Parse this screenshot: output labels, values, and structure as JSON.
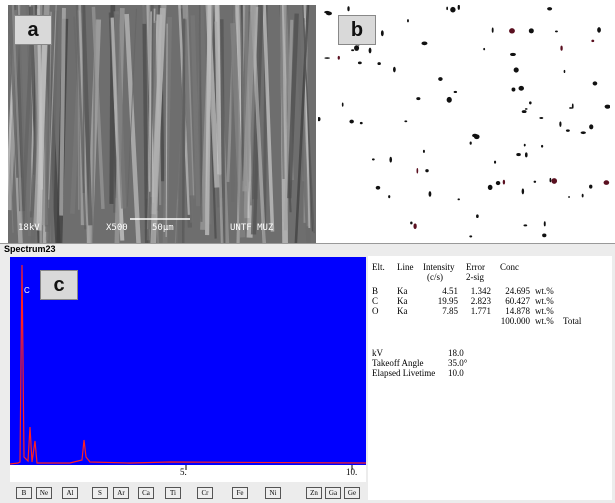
{
  "panels": {
    "a": {
      "label": "a",
      "info": {
        "voltage": "18kV",
        "magnification": "X500",
        "scale": "50µm",
        "lab": "UNTF MUZ"
      }
    },
    "b": {
      "label": "b"
    },
    "c": {
      "label": "c",
      "title": "Spectrum23",
      "peak_label": "C",
      "axis_labels": [
        "5.",
        "10."
      ],
      "elements": [
        "B",
        "Ne",
        "Al",
        "S",
        "Ar",
        "Ca",
        "Ti",
        "Cr",
        "Fe",
        "Ni",
        "Zn",
        "Ga",
        "Ge"
      ]
    }
  },
  "results": {
    "headers": [
      [
        "Elt."
      ],
      [
        "Line"
      ],
      [
        "Intensity",
        "(c/s)"
      ],
      [
        "Error",
        "2-sig"
      ],
      [
        "Conc"
      ]
    ],
    "rows": [
      [
        "B",
        "Ka",
        "4.51",
        "1.342",
        "24.695",
        "wt.%"
      ],
      [
        "C",
        "Ka",
        "19.95",
        "2.823",
        "60.427",
        "wt.%"
      ],
      [
        "O",
        "Ka",
        "7.85",
        "1.771",
        "14.878",
        "wt.%"
      ]
    ],
    "total": [
      "100.000",
      "wt.%",
      "Total"
    ],
    "settings": [
      [
        "kV",
        "18.0"
      ],
      [
        "Takeoff Angle",
        "35.0°"
      ],
      [
        "Elapsed Livetime",
        "10.0"
      ]
    ]
  }
}
